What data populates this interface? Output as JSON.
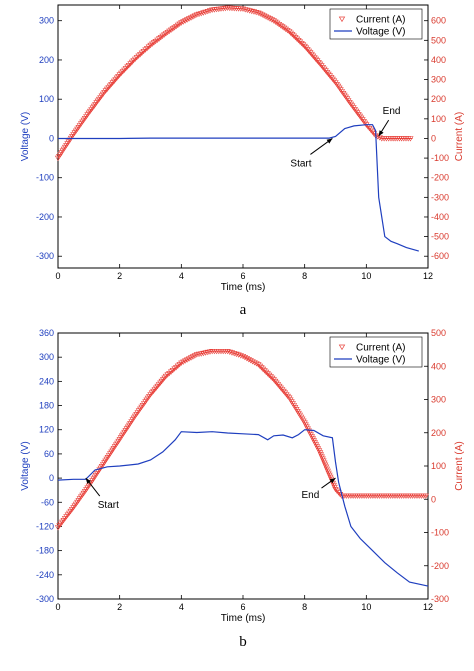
{
  "colors": {
    "current": "#e8403a",
    "voltage": "#1f3fbf",
    "axis_left": "#1f3fbf",
    "axis_right": "#d93a2e",
    "frame": "#000000"
  },
  "chart_data": [
    {
      "type": "line",
      "panel_label": "a",
      "xlabel": "Time (ms)",
      "ylabel": "Voltage (V)",
      "ylabel_right": "Current (A)",
      "xlim": [
        0,
        12
      ],
      "ylim": [
        -330,
        340
      ],
      "ylim_right": [
        -660,
        680
      ],
      "xticks": [
        0,
        2,
        4,
        6,
        8,
        10,
        12
      ],
      "yticks": [
        -300,
        -200,
        -100,
        0,
        100,
        200,
        300
      ],
      "yticks_right": [
        -600,
        -500,
        -400,
        -300,
        -200,
        -100,
        0,
        100,
        200,
        300,
        400,
        500,
        600
      ],
      "grid": false,
      "legend_position": "top-right",
      "series": [
        {
          "name": "Current (A)",
          "axis": "right",
          "marker": "triangle-down",
          "x": [
            0,
            0.5,
            1,
            1.5,
            2,
            2.5,
            3,
            3.5,
            4,
            4.5,
            5,
            5.5,
            6,
            6.5,
            7,
            7.5,
            8,
            8.5,
            9,
            9.5,
            10,
            10.3,
            10.5,
            10.8,
            11,
            11.5
          ],
          "values": [
            -100,
            20,
            130,
            235,
            325,
            405,
            475,
            535,
            590,
            630,
            655,
            665,
            660,
            640,
            600,
            545,
            470,
            380,
            285,
            175,
            70,
            15,
            0,
            0,
            0,
            0
          ]
        },
        {
          "name": "Voltage (V)",
          "axis": "left",
          "x": [
            0,
            2,
            3,
            6,
            8.8,
            9.0,
            9.3,
            9.6,
            10.0,
            10.2,
            10.3,
            10.4,
            10.6,
            10.8,
            11.0,
            11.3,
            11.7
          ],
          "values": [
            0,
            0,
            1,
            1,
            1,
            5,
            25,
            32,
            35,
            35,
            20,
            -150,
            -250,
            -262,
            -268,
            -278,
            -287
          ]
        }
      ],
      "annotations": [
        {
          "text": "Start",
          "x": 8.9,
          "y": 0
        },
        {
          "text": "End",
          "x": 10.4,
          "y": 6
        }
      ]
    },
    {
      "type": "line",
      "panel_label": "b",
      "xlabel": "Time (ms)",
      "ylabel": "Voltage (V)",
      "ylabel_right": "Current (A)",
      "xlim": [
        0,
        12
      ],
      "ylim": [
        -300,
        360
      ],
      "ylim_right": [
        -300,
        500
      ],
      "xticks": [
        0,
        2,
        4,
        6,
        8,
        10,
        12
      ],
      "yticks": [
        -300,
        -240,
        -180,
        -120,
        -60,
        0,
        60,
        120,
        180,
        240,
        300,
        360
      ],
      "yticks_right": [
        -300,
        -200,
        -100,
        0,
        100,
        200,
        300,
        400,
        500
      ],
      "grid": false,
      "legend_position": "top-right",
      "series": [
        {
          "name": "Current (A)",
          "axis": "right",
          "marker": "triangle-down",
          "x": [
            0,
            0.5,
            1,
            1.5,
            2,
            2.5,
            3,
            3.5,
            4,
            4.5,
            5,
            5.5,
            6,
            6.5,
            7,
            7.5,
            8,
            8.5,
            9,
            9.2,
            9.5,
            10,
            11,
            12
          ],
          "values": [
            -85,
            -25,
            40,
            110,
            180,
            250,
            315,
            370,
            410,
            435,
            445,
            445,
            430,
            405,
            360,
            305,
            230,
            140,
            30,
            10,
            10,
            10,
            10,
            10
          ]
        },
        {
          "name": "Voltage (V)",
          "axis": "left",
          "x": [
            0,
            0.5,
            0.9,
            1.2,
            1.6,
            2.0,
            2.6,
            3.0,
            3.4,
            3.8,
            4.0,
            4.5,
            5.0,
            5.5,
            6.0,
            6.5,
            6.8,
            7.0,
            7.3,
            7.6,
            7.8,
            8.0,
            8.3,
            8.6,
            8.9,
            9.0,
            9.1,
            9.3,
            9.5,
            9.8,
            10.2,
            10.6,
            11.0,
            11.4,
            12.0
          ],
          "values": [
            -5,
            -3,
            -3,
            20,
            28,
            30,
            35,
            45,
            65,
            95,
            115,
            113,
            115,
            112,
            110,
            108,
            95,
            105,
            107,
            100,
            108,
            120,
            118,
            105,
            100,
            40,
            -10,
            -70,
            -120,
            -150,
            -180,
            -210,
            -235,
            -258,
            -268
          ]
        }
      ],
      "annotations": [
        {
          "text": "Start",
          "x": 0.9,
          "y": 0
        },
        {
          "text": "End",
          "x": 9.0,
          "y": 0
        }
      ]
    }
  ]
}
